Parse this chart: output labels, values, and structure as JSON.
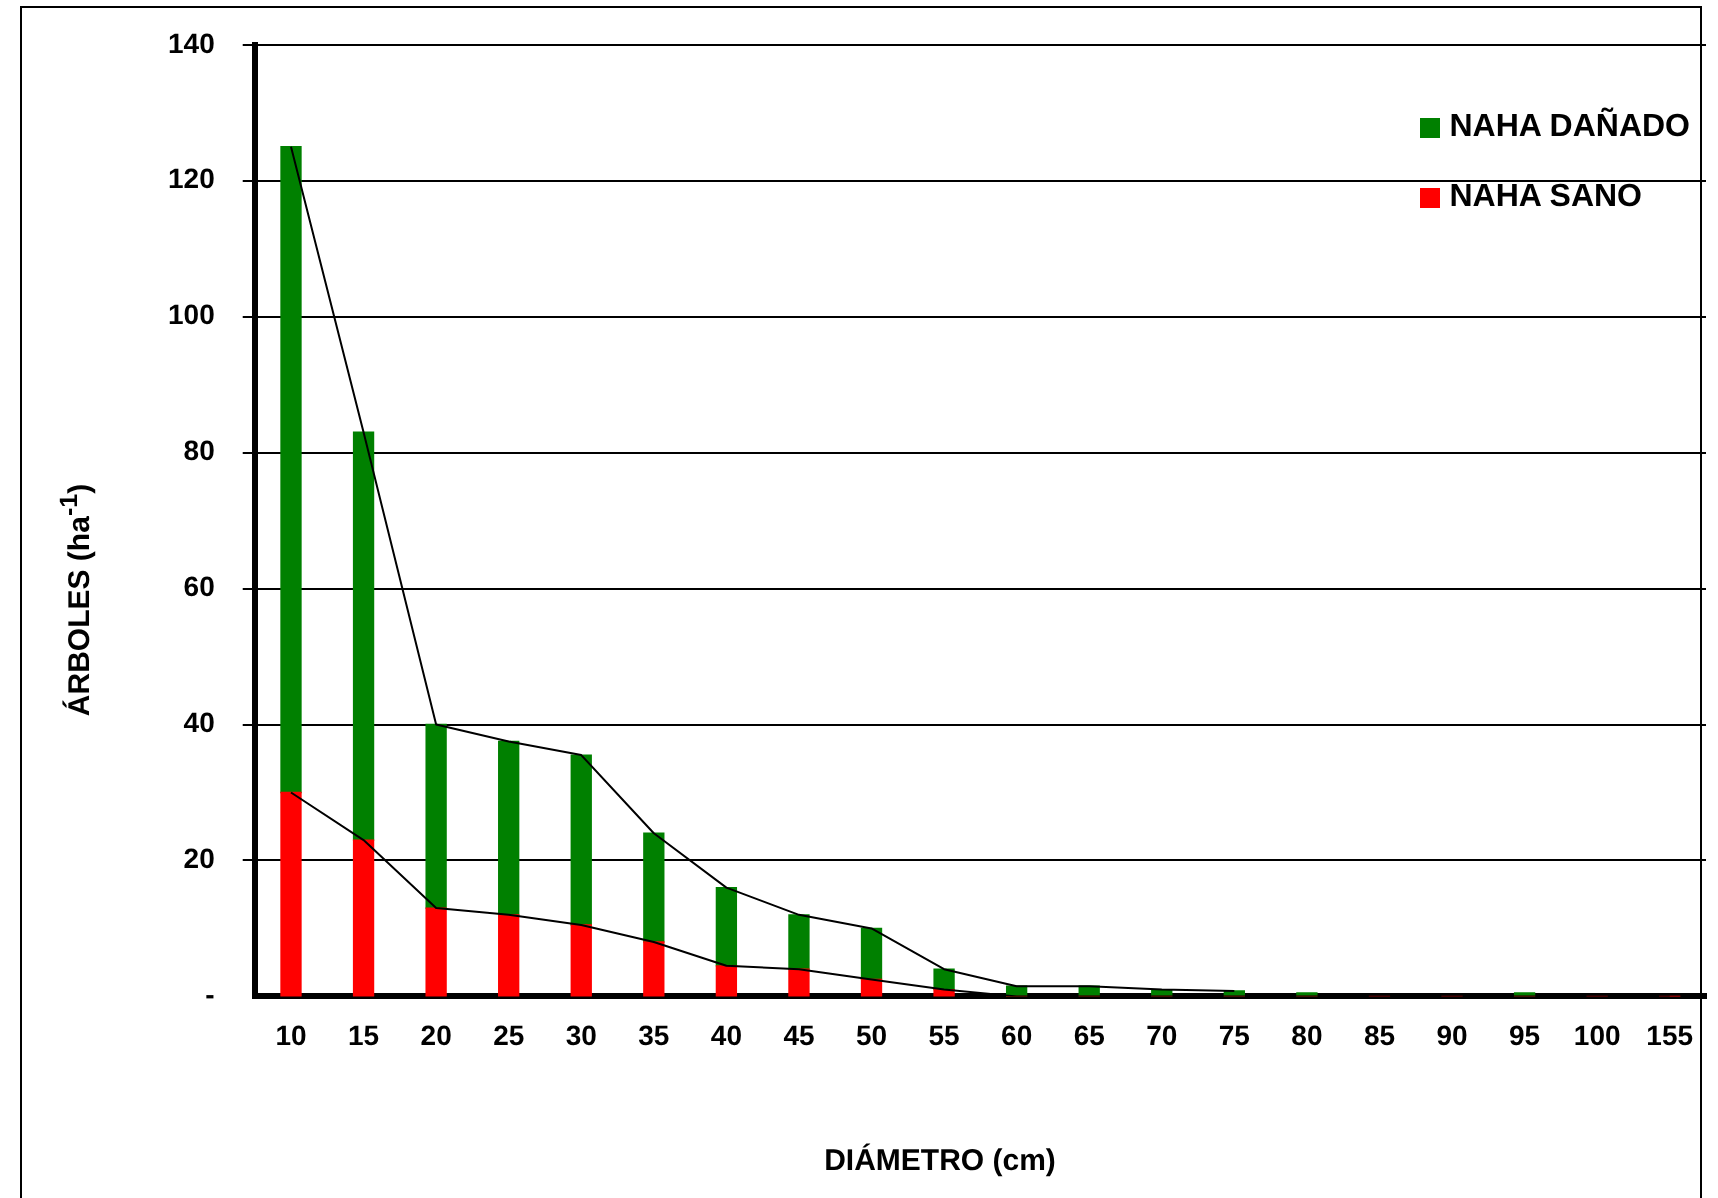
{
  "chart_data": {
    "type": "bar",
    "stacked": true,
    "xlabel": "DIÁMETRO (cm)",
    "ylabel": "ÁRBOLES  (ha$^{-1}$)",
    "categories": [
      "10",
      "15",
      "20",
      "25",
      "30",
      "35",
      "40",
      "45",
      "50",
      "55",
      "60",
      "65",
      "70",
      "75",
      "80",
      "85",
      "90",
      "95",
      "100",
      "155"
    ],
    "series": [
      {
        "name": "NAHA SANO",
        "color": "#ff0000",
        "values": [
          30,
          23,
          13,
          12,
          10.5,
          8,
          4.5,
          4,
          2.5,
          1,
          0,
          0,
          0,
          0,
          0,
          0,
          0,
          0,
          0,
          0
        ]
      },
      {
        "name": "NAHA DAÑADO",
        "color": "#008000",
        "values": [
          95,
          60,
          27,
          25.5,
          25,
          16,
          11.5,
          8,
          7.5,
          3,
          1.5,
          1.5,
          1,
          0.8,
          0.5,
          null,
          null,
          0.5,
          null,
          null
        ]
      },
      {
        "type": "line",
        "color": "#000000",
        "values": [
          125,
          83,
          40,
          37.5,
          35.5,
          24,
          16,
          12,
          10,
          4,
          1.5,
          1.5,
          1,
          0.8,
          null,
          null,
          null,
          null,
          null,
          null
        ]
      },
      {
        "type": "line",
        "color": "#000000",
        "values": [
          30,
          23,
          13,
          12,
          10.5,
          8,
          4.5,
          4,
          2.5,
          1,
          0,
          0,
          0,
          0,
          0,
          0,
          0,
          0,
          0,
          0
        ]
      }
    ],
    "ylim": [
      0,
      140
    ],
    "yticks": [
      {
        "value": 0,
        "label": "-"
      },
      20,
      40,
      60,
      80,
      100,
      120,
      140
    ],
    "grid": "y",
    "legend": "top right",
    "marker": "none",
    "line_style": "solid"
  }
}
